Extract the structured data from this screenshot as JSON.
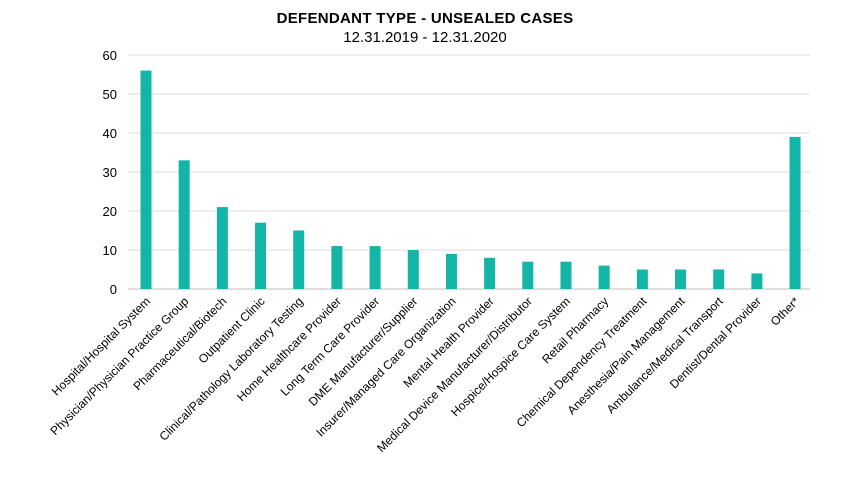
{
  "chart_data": {
    "type": "bar",
    "title": "DEFENDANT TYPE - UNSEALED CASES",
    "subtitle": "12.31.2019 - 12.31.2020",
    "xlabel": "",
    "ylabel": "",
    "ylim": [
      0,
      60
    ],
    "yticks": [
      0,
      10,
      20,
      30,
      40,
      50,
      60
    ],
    "grid": true,
    "legend": "none",
    "bar_color": "#12b5a6",
    "categories": [
      "Hospital/Hospital System",
      "Physician/Physician Practice Group",
      "Pharmaceutical/Biotech",
      "Outpatient Clinic",
      "Clinical/Pathology Laboratory Testing",
      "Home Healthcare Provider",
      "Long Term Care Provider",
      "DME Manufacturer/Supplier",
      "Insurer/Managed Care Organization",
      "Mental Health Provider",
      "Medical Device Manufacturer/Distributor",
      "Hospice/Hospice Care System",
      "Retail Pharmacy",
      "Chemical Dependency Treatment",
      "Anesthesia/Pain Management",
      "Ambulance/Medical Transport",
      "Dentist/Dental Provider",
      "Other*"
    ],
    "values": [
      56,
      33,
      21,
      17,
      15,
      11,
      11,
      10,
      9,
      8,
      7,
      7,
      6,
      5,
      5,
      5,
      4,
      39
    ]
  }
}
